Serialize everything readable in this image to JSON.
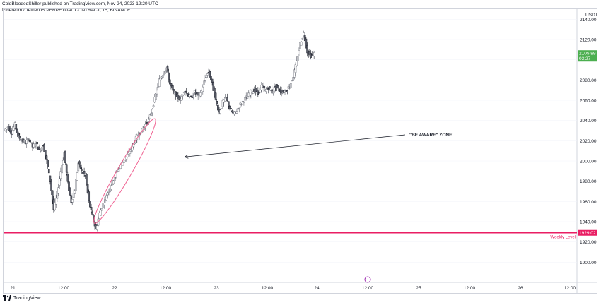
{
  "header": {
    "published": "ColdBloodedShiller published on TradingView.com, Nov 24, 2023 12:20 UTC",
    "symbol": "Ethereum / TetherUS PERPETUAL CONTRACT, 15, BINANCE"
  },
  "footer": {
    "brand": "TradingView"
  },
  "colors": {
    "up": "#26a69a",
    "down": "#ef5350",
    "candle": "#5d606b",
    "level": "#e91e63",
    "price_badge": "#4caf50",
    "ellipse": "#f06292",
    "grid": "#f0f3fa"
  },
  "chart_data": {
    "type": "candlestick",
    "currency": "USDT",
    "ylim": [
      1880,
      2150
    ],
    "y_ticks": [
      1900,
      1920,
      1940,
      1960,
      1980,
      2000,
      2020,
      2040,
      2060,
      2080,
      2100,
      2120,
      2140
    ],
    "x_tick_labels": [
      "21",
      "12:00",
      "22",
      "12:00",
      "23",
      "12:00",
      "24",
      "12:00",
      "25",
      "12:00",
      "26",
      "12:00"
    ],
    "price_path": [
      [
        0,
        2030
      ],
      [
        1,
        2034
      ],
      [
        2,
        2028
      ],
      [
        3,
        2036
      ],
      [
        4,
        2024
      ],
      [
        5,
        2020
      ],
      [
        6,
        2018
      ],
      [
        7,
        2022
      ],
      [
        8,
        2014
      ],
      [
        9,
        2018
      ],
      [
        10,
        2010
      ],
      [
        11,
        2016
      ],
      [
        12,
        2000
      ],
      [
        13,
        1980
      ],
      [
        14,
        1952
      ],
      [
        15,
        1968
      ],
      [
        16,
        1990
      ],
      [
        17,
        2008
      ],
      [
        18,
        1978
      ],
      [
        19,
        1960
      ],
      [
        20,
        1972
      ],
      [
        21,
        1998
      ],
      [
        22,
        1990
      ],
      [
        23,
        1985
      ],
      [
        24,
        1960
      ],
      [
        25,
        1945
      ],
      [
        26,
        1932
      ],
      [
        27,
        1948
      ],
      [
        28,
        1958
      ],
      [
        29,
        1966
      ],
      [
        30,
        1974
      ],
      [
        31,
        1982
      ],
      [
        32,
        1990
      ],
      [
        33,
        1996
      ],
      [
        34,
        2000
      ],
      [
        35,
        2006
      ],
      [
        36,
        2012
      ],
      [
        37,
        2020
      ],
      [
        38,
        2026
      ],
      [
        39,
        2030
      ],
      [
        40,
        2036
      ],
      [
        41,
        2040
      ],
      [
        42,
        2052
      ],
      [
        43,
        2066
      ],
      [
        44,
        2080
      ],
      [
        45,
        2086
      ],
      [
        46,
        2092
      ],
      [
        47,
        2076
      ],
      [
        48,
        2068
      ],
      [
        49,
        2064
      ],
      [
        50,
        2060
      ],
      [
        51,
        2070
      ],
      [
        52,
        2066
      ],
      [
        53,
        2062
      ],
      [
        54,
        2068
      ],
      [
        55,
        2064
      ],
      [
        56,
        2070
      ],
      [
        57,
        2082
      ],
      [
        58,
        2088
      ],
      [
        59,
        2076
      ],
      [
        60,
        2060
      ],
      [
        61,
        2048
      ],
      [
        62,
        2058
      ],
      [
        63,
        2062
      ],
      [
        64,
        2052
      ],
      [
        65,
        2046
      ],
      [
        66,
        2050
      ],
      [
        67,
        2056
      ],
      [
        68,
        2060
      ],
      [
        69,
        2064
      ],
      [
        70,
        2068
      ],
      [
        71,
        2070
      ],
      [
        72,
        2066
      ],
      [
        73,
        2074
      ],
      [
        74,
        2070
      ],
      [
        75,
        2072
      ],
      [
        76,
        2068
      ],
      [
        77,
        2074
      ],
      [
        78,
        2070
      ],
      [
        79,
        2068
      ],
      [
        80,
        2070
      ],
      [
        81,
        2074
      ],
      [
        82,
        2084
      ],
      [
        83,
        2098
      ],
      [
        84,
        2116
      ],
      [
        85,
        2126
      ],
      [
        86,
        2108
      ],
      [
        87,
        2104
      ],
      [
        88,
        2106
      ]
    ],
    "x_range": [
      0,
      162
    ],
    "current_price": {
      "value": "2105.89",
      "countdown": "03:27"
    },
    "level": {
      "value": 1929.02,
      "label": "1929.02",
      "name": "Weekly Level"
    },
    "annotation": {
      "text": "\"BE AWARE\" ZONE",
      "arrow_to_x": 45,
      "arrow_to_y": 2004,
      "from_x": 96,
      "from_y": 2032
    },
    "ellipse": {
      "x1": 26,
      "y1": 1942,
      "x2": 42,
      "y2": 2038
    }
  }
}
